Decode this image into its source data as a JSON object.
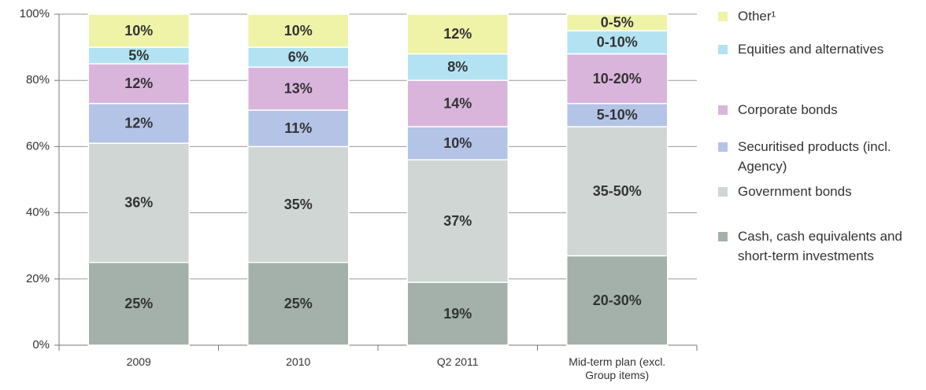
{
  "chart_data": {
    "type": "stacked_bar",
    "categories": [
      "2009",
      "2010",
      "Q2 2011",
      "Mid-term plan (excl. Group items)"
    ],
    "series": [
      {
        "name": "Cash, cash equivalents and short-term investments",
        "color": "#a3b1aa",
        "values": [
          25,
          25,
          19,
          27
        ],
        "value_labels": [
          "25%",
          "25%",
          "19%",
          "20-30%"
        ]
      },
      {
        "name": "Government bonds",
        "color": "#cfd6d3",
        "values": [
          36,
          35,
          37,
          39
        ],
        "value_labels": [
          "36%",
          "35%",
          "37%",
          "35-50%"
        ]
      },
      {
        "name": "Securitised products (incl. Agency)",
        "color": "#b4c4e6",
        "values": [
          12,
          11,
          10,
          7
        ],
        "value_labels": [
          "12%",
          "11%",
          "10%",
          "5-10%"
        ]
      },
      {
        "name": "Corporate bonds",
        "color": "#d9b5dc",
        "values": [
          12,
          13,
          14,
          15
        ],
        "value_labels": [
          "12%",
          "13%",
          "14%",
          "10-20%"
        ]
      },
      {
        "name": "Equities and alternatives",
        "color": "#b3e3f2",
        "values": [
          5,
          6,
          8,
          7
        ],
        "value_labels": [
          "5%",
          "6%",
          "8%",
          "0-10%"
        ]
      },
      {
        "name": "Other¹",
        "color": "#eef3a8",
        "values": [
          10,
          10,
          12,
          5
        ],
        "value_labels": [
          "10%",
          "10%",
          "12%",
          "0-5%"
        ]
      }
    ],
    "ylim": [
      0,
      100
    ],
    "yticks": [
      {
        "value": 0,
        "label": "0%"
      },
      {
        "value": 20,
        "label": "20%"
      },
      {
        "value": 40,
        "label": "40%"
      },
      {
        "value": 60,
        "label": "60%"
      },
      {
        "value": 80,
        "label": "80%"
      },
      {
        "value": 100,
        "label": "100%"
      }
    ],
    "grid": true,
    "legend": "right"
  }
}
